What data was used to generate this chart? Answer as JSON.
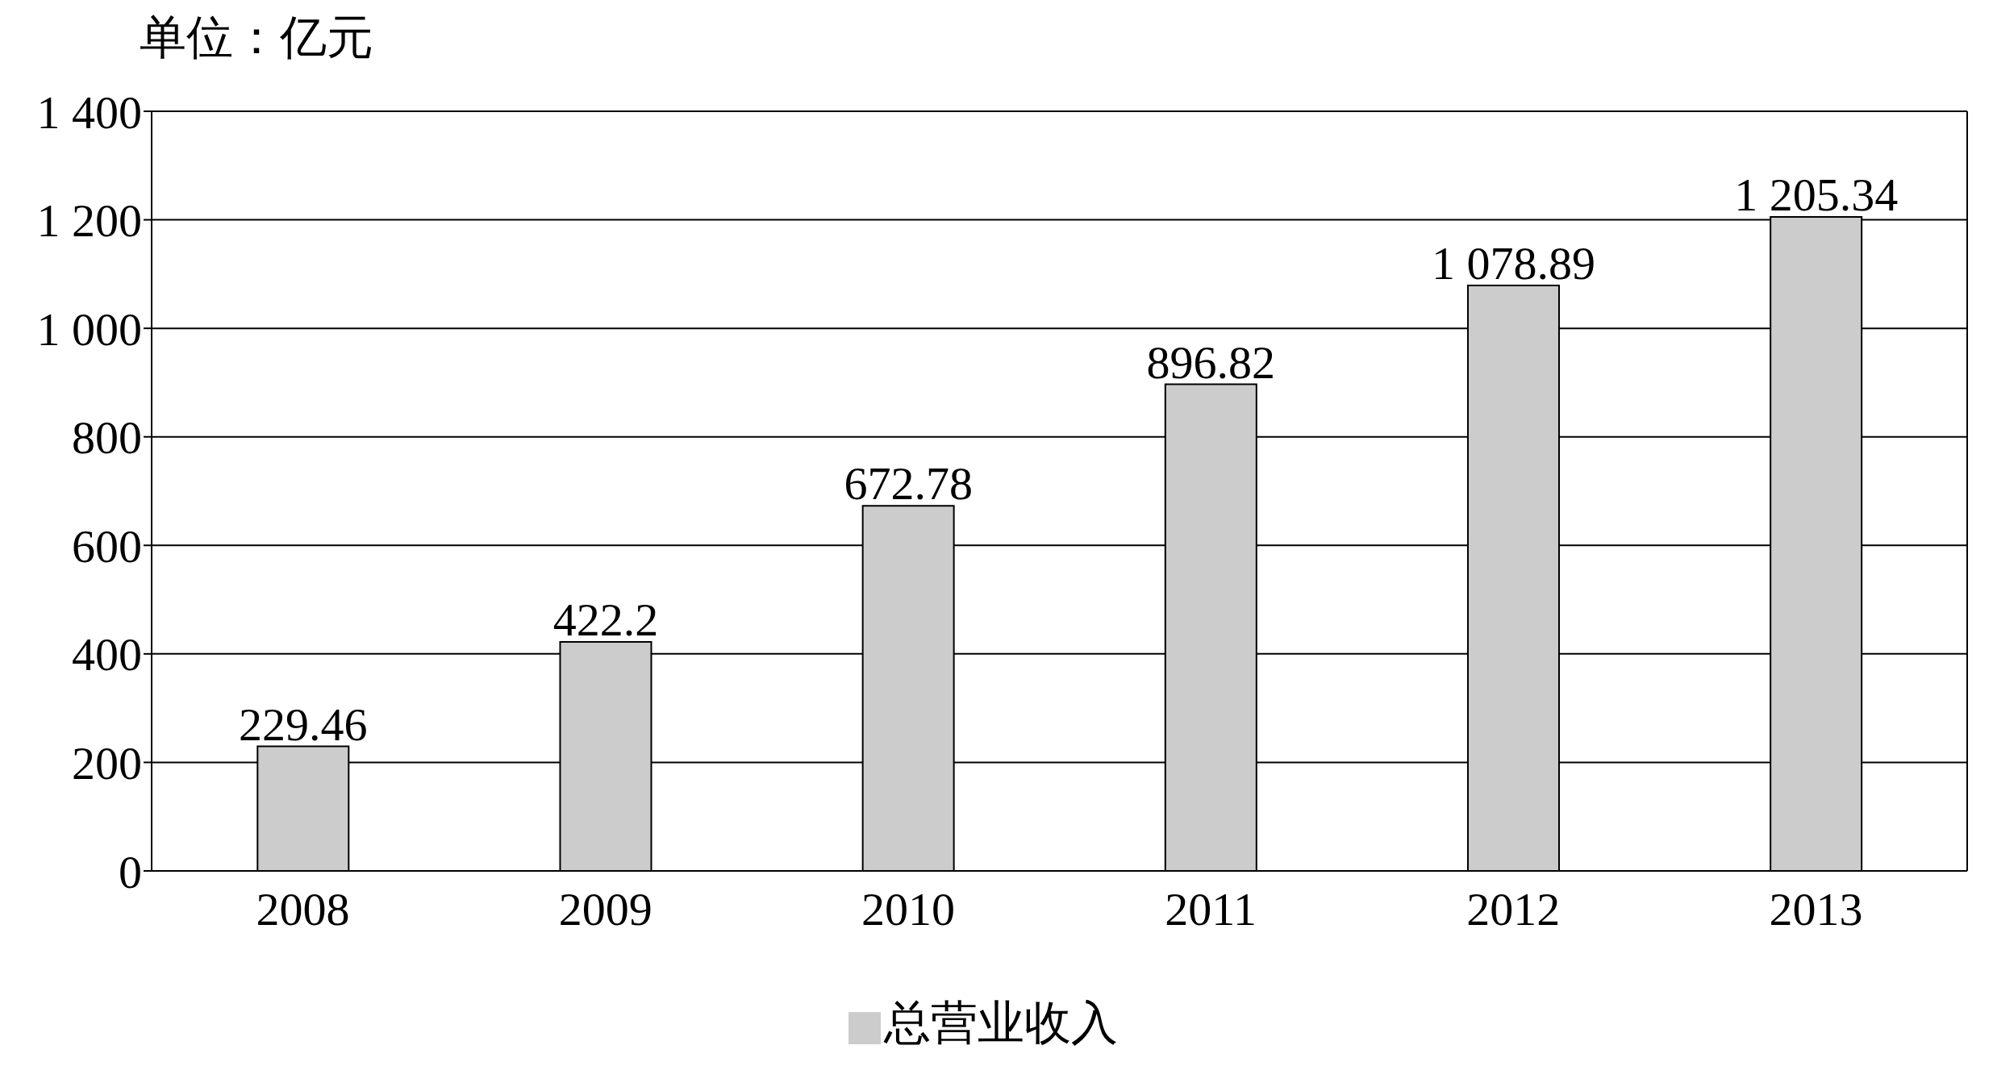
{
  "chart_data": {
    "type": "bar",
    "ylabel": "单位：亿元",
    "categories": [
      "2008",
      "2009",
      "2010",
      "2011",
      "2012",
      "2013"
    ],
    "series": [
      {
        "name": "总营业收入",
        "color": "#cccccc",
        "values": [
          229.46,
          422.2,
          672.78,
          896.82,
          1078.89,
          1205.34
        ],
        "value_labels": [
          "229.46",
          "422.2",
          "672.78",
          "896.82",
          "1 078.89",
          "1 205.34"
        ]
      }
    ],
    "ylim": [
      0,
      1400
    ],
    "yticks": [
      0,
      200,
      400,
      600,
      800,
      {
        "value": 1000,
        "label": "1 000"
      },
      {
        "value": 1200,
        "label": "1 200"
      },
      {
        "value": 1400,
        "label": "1 400"
      }
    ],
    "grid": "y",
    "legend": "bottom"
  }
}
